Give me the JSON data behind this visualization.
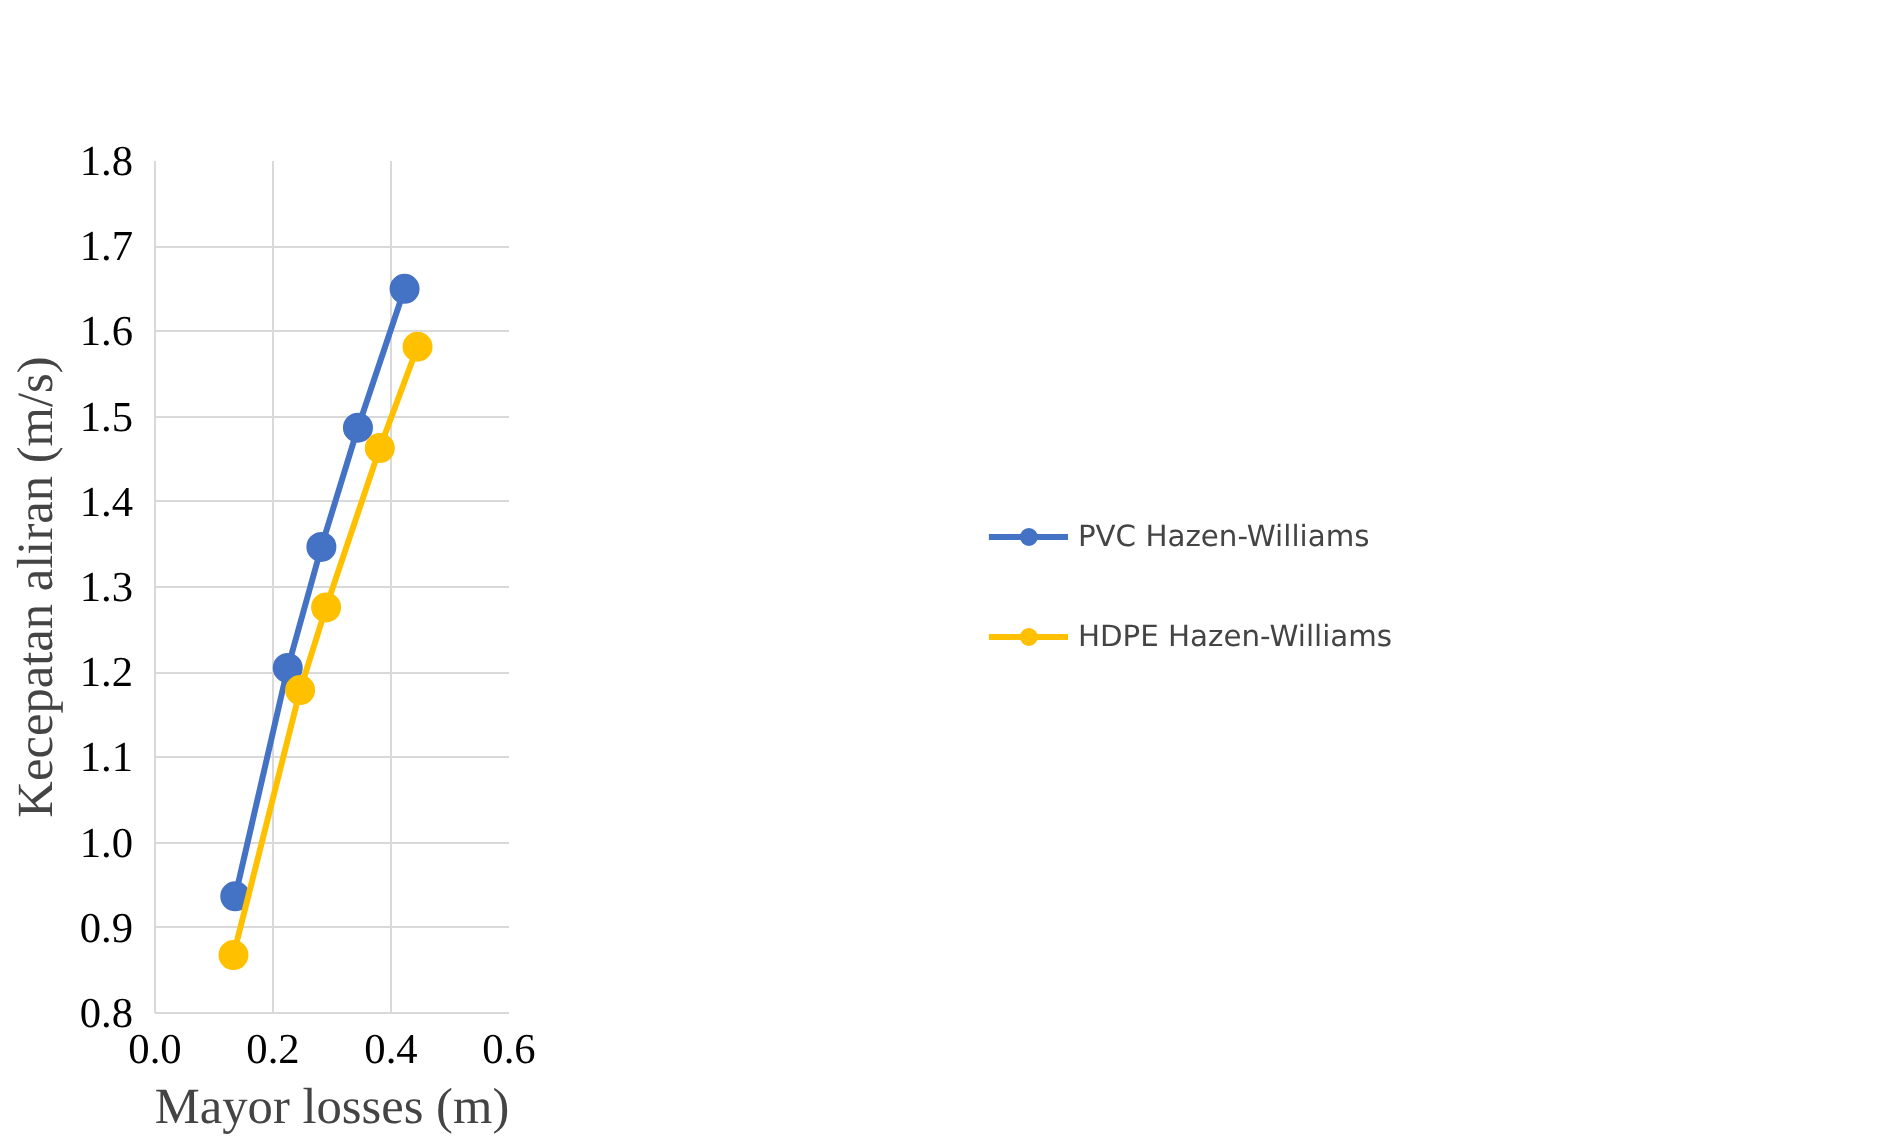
{
  "chart_data": {
    "type": "line",
    "xlabel": "Mayor losses (m)",
    "ylabel": "Kecepatan aliran (m/s)",
    "xlim": [
      0,
      0.6
    ],
    "xticks": [
      {
        "value": 0,
        "label": "0.0"
      },
      0.2,
      0.4,
      0.6
    ],
    "ylim": [
      0.8,
      1.8
    ],
    "yticks": [
      0.8,
      0.9,
      {
        "value": 1.0,
        "label": "1.0"
      },
      1.1,
      1.2,
      1.3,
      1.4,
      1.5,
      1.6,
      1.7,
      1.8
    ],
    "grid": true,
    "legend": "right",
    "marker": "circle",
    "line_style": "solid",
    "series": [
      {
        "name": "PVC Hazen-Williams",
        "color": "#4472c4",
        "x": [
          0.136,
          0.225,
          0.282,
          0.344,
          0.423
        ],
        "values": [
          0.937,
          1.205,
          1.347,
          1.487,
          1.65
        ]
      },
      {
        "name": "HDPE Hazen-Williams",
        "color": "#ffc000",
        "x": [
          0.133,
          0.246,
          0.29,
          0.381,
          0.445
        ],
        "values": [
          0.868,
          1.179,
          1.276,
          1.463,
          1.582
        ]
      }
    ]
  }
}
